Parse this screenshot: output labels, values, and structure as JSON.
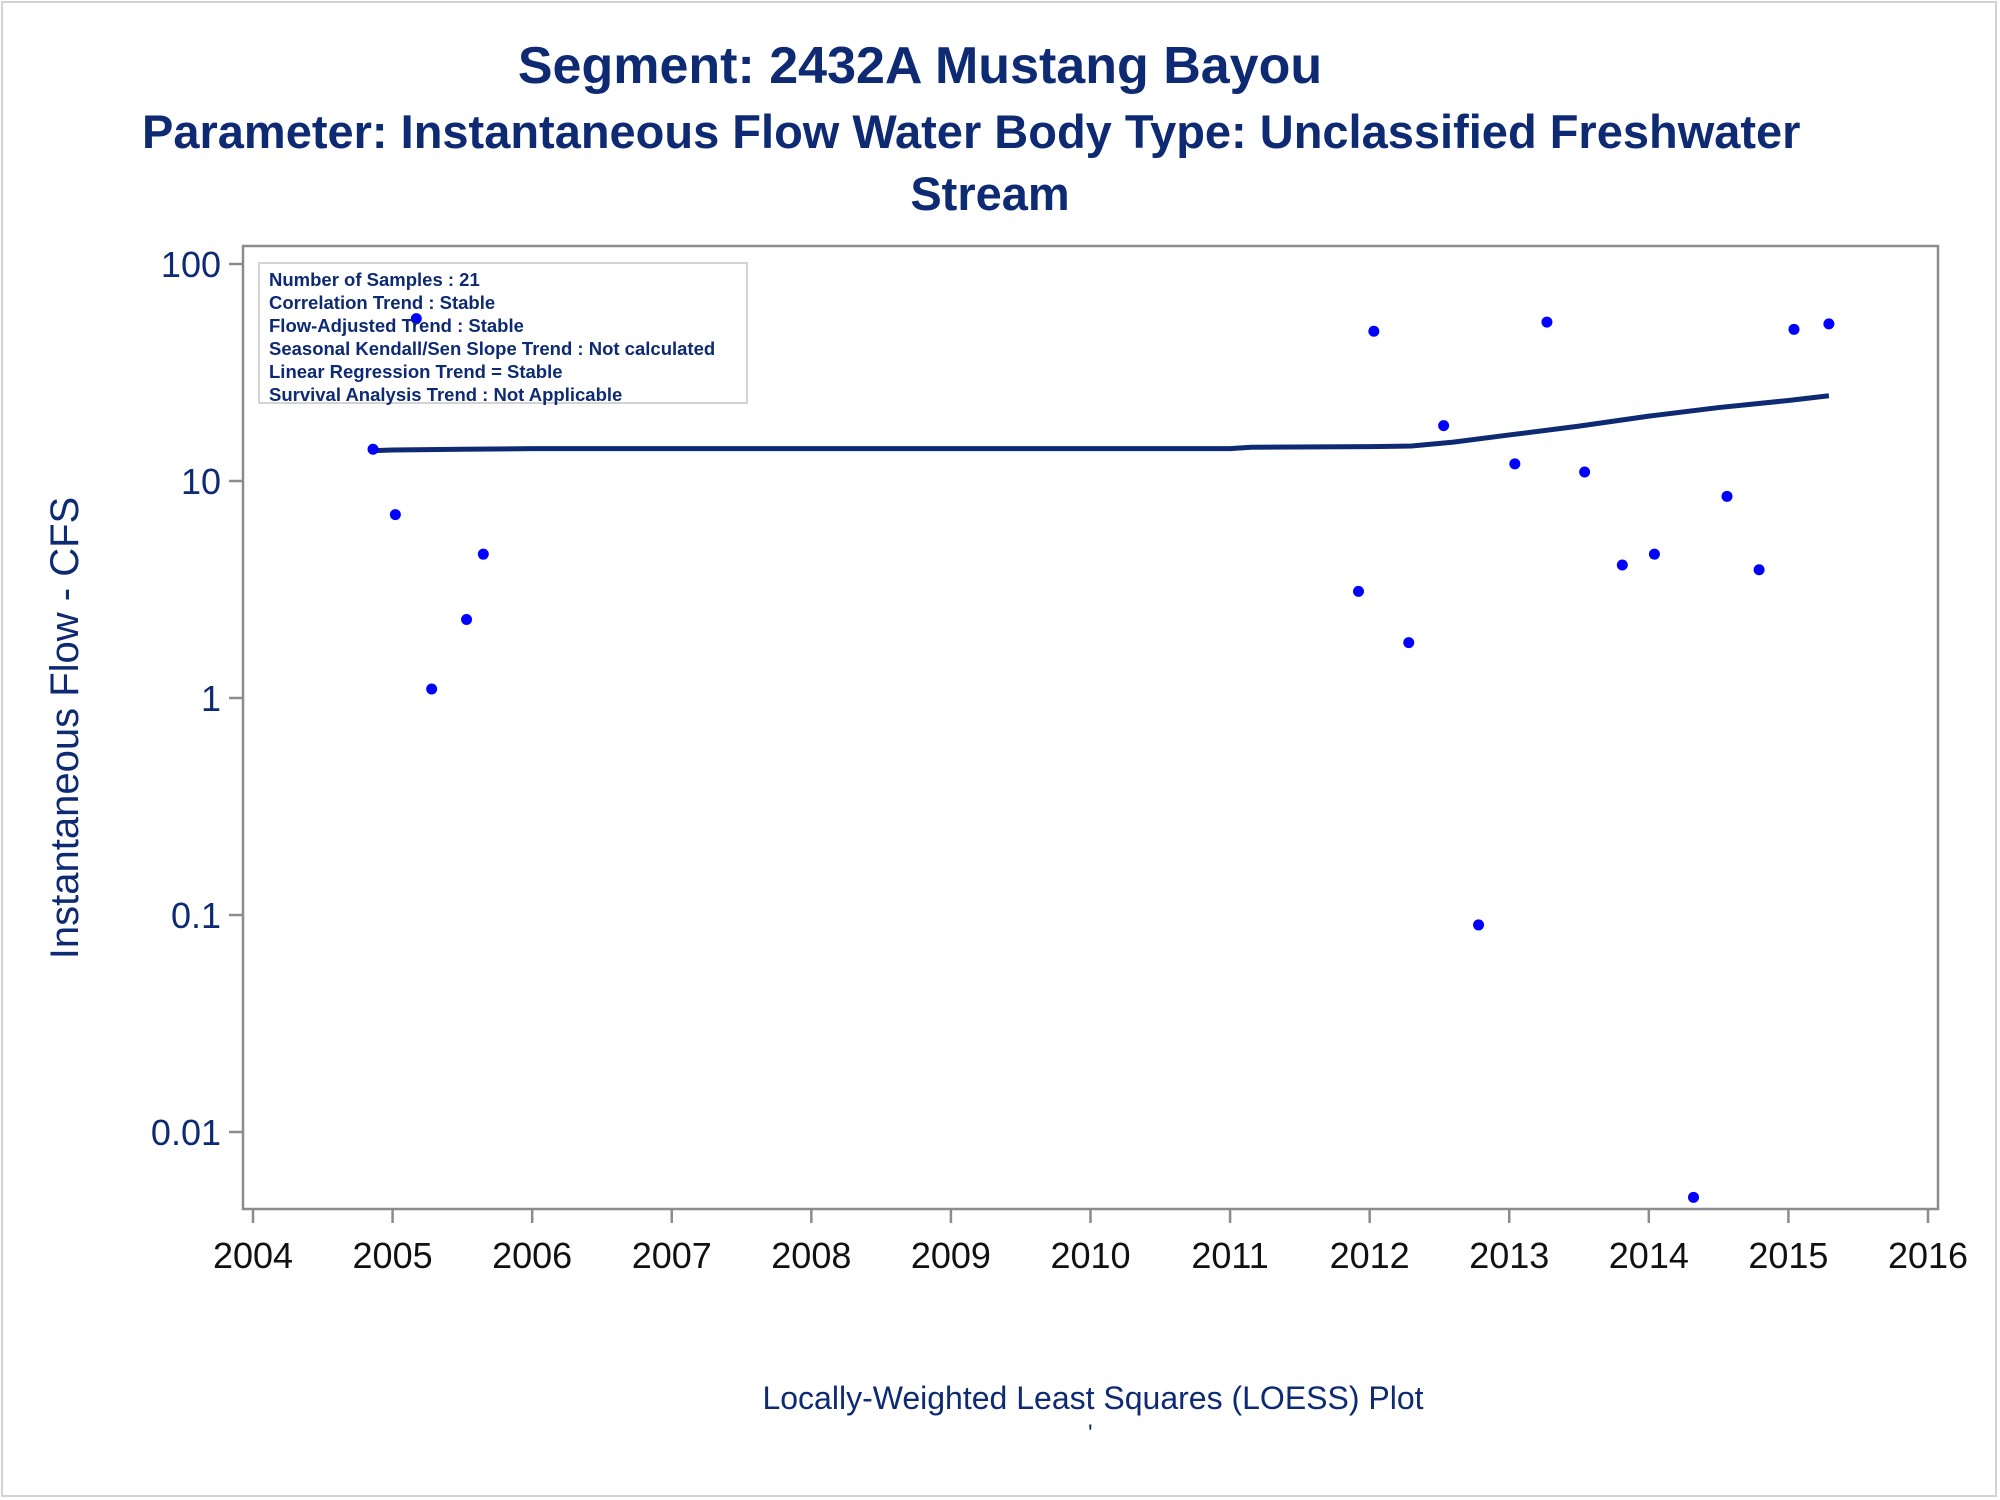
{
  "titles": {
    "line1": "Segment: 2432A  Mustang Bayou",
    "line2": "Parameter: Instantaneous Flow   Water Body Type: Unclassified Freshwater",
    "line3": "Stream"
  },
  "stats": {
    "samples": "Number of Samples : 21",
    "correlation": "Correlation Trend : Stable",
    "flow_adjusted": "Flow-Adjusted Trend : Stable",
    "seasonal": "Seasonal Kendall/Sen Slope Trend : Not calculated",
    "linear": "Linear Regression Trend = Stable",
    "survival": "Survival Analysis Trend : Not Applicable"
  },
  "footer": "Locally-Weighted Least Squares (LOESS) Plot",
  "footnote": "'",
  "colors": {
    "text": "#0d2a73",
    "points": "#0000ff",
    "line": "#0d2a73",
    "axis": "#8c8c8c"
  },
  "chart_data": {
    "type": "scatter",
    "ylabel": "Instantaneous Flow - CFS",
    "yscale": "log",
    "xlim": [
      2004,
      2016
    ],
    "ylim": [
      0.005,
      140
    ],
    "xticks": [
      "2004",
      "2005",
      "2006",
      "2007",
      "2008",
      "2009",
      "2010",
      "2011",
      "2012",
      "2013",
      "2014",
      "2015",
      "2016"
    ],
    "yticks": [
      {
        "value": 100,
        "label": "100"
      },
      {
        "value": 10,
        "label": "10"
      },
      {
        "value": 1,
        "label": "1"
      },
      {
        "value": 0.1,
        "label": "0.1"
      },
      {
        "value": 0.01,
        "label": "0.01"
      }
    ],
    "series": [
      {
        "type": "scatter",
        "points": [
          [
            2004.86,
            14.0
          ],
          [
            2005.02,
            7.0
          ],
          [
            2005.17,
            56.0
          ],
          [
            2005.28,
            1.1
          ],
          [
            2005.53,
            2.3
          ],
          [
            2005.65,
            4.6
          ],
          [
            2011.92,
            3.1
          ],
          [
            2012.03,
            49.0
          ],
          [
            2012.28,
            1.8
          ],
          [
            2012.53,
            18.0
          ],
          [
            2012.78,
            0.09
          ],
          [
            2013.04,
            12.0
          ],
          [
            2013.27,
            54.0
          ],
          [
            2013.54,
            11.0
          ],
          [
            2013.81,
            4.1
          ],
          [
            2014.04,
            4.6
          ],
          [
            2014.32,
            0.005
          ],
          [
            2014.56,
            8.5
          ],
          [
            2014.79,
            3.9
          ],
          [
            2015.04,
            50.0
          ],
          [
            2015.29,
            53.0
          ]
        ]
      },
      {
        "type": "line",
        "points": [
          [
            2004.86,
            13.8
          ],
          [
            2005.0,
            13.9
          ],
          [
            2005.5,
            14.0
          ],
          [
            2006.0,
            14.1
          ],
          [
            2007.0,
            14.1
          ],
          [
            2008.0,
            14.1
          ],
          [
            2009.0,
            14.1
          ],
          [
            2010.0,
            14.1
          ],
          [
            2011.0,
            14.1
          ],
          [
            2011.15,
            14.3
          ],
          [
            2012.0,
            14.4
          ],
          [
            2012.3,
            14.5
          ],
          [
            2012.6,
            15.1
          ],
          [
            2013.0,
            16.3
          ],
          [
            2013.5,
            17.9
          ],
          [
            2014.0,
            19.9
          ],
          [
            2014.5,
            21.8
          ],
          [
            2015.0,
            23.5
          ],
          [
            2015.29,
            24.7
          ]
        ]
      }
    ]
  }
}
